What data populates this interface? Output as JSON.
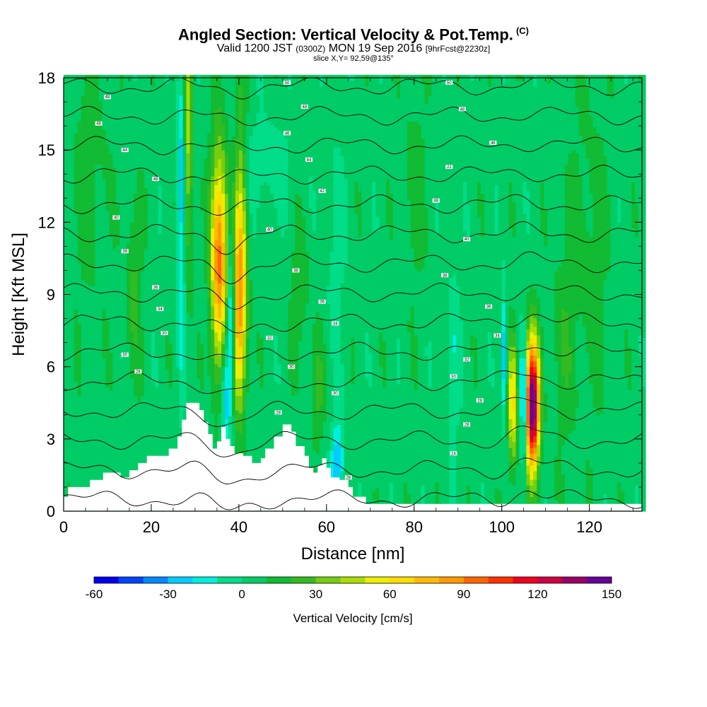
{
  "header": {
    "title_main": "Angled Section: Vertical Velocity & Pot.Temp.",
    "title_sup": "(C)",
    "subtitle_a": "Valid 1200 JST",
    "subtitle_b": "(0300Z)",
    "subtitle_c": "MON 19 Sep 2016",
    "subtitle_d": "[9hrFcst@2230z]",
    "slice": "slice X,Y= 92,59@135°"
  },
  "chart_data": {
    "type": "heatmap",
    "xlabel": "Distance [nm]",
    "ylabel": "Height [Kft MSL]",
    "xlim": [
      0,
      132
    ],
    "ylim": [
      0,
      18
    ],
    "x_ticks": [
      0,
      20,
      40,
      60,
      80,
      100,
      120
    ],
    "y_ticks": [
      0,
      3,
      6,
      9,
      12,
      15,
      18
    ],
    "x_tick_labels": [
      "0",
      "20",
      "40",
      "60",
      "80",
      "100",
      "120"
    ],
    "y_tick_labels": [
      "0",
      "3",
      "6",
      "9",
      "12",
      "15",
      "18"
    ],
    "background_w": 5,
    "terrain": [
      [
        0,
        0.6
      ],
      [
        1,
        1.0
      ],
      [
        6,
        1.3
      ],
      [
        9,
        1.6
      ],
      [
        13,
        1.4
      ],
      [
        15,
        1.7
      ],
      [
        17,
        2.0
      ],
      [
        19,
        2.3
      ],
      [
        24,
        2.6
      ],
      [
        26,
        3.1
      ],
      [
        27,
        3.8
      ],
      [
        28,
        4.5
      ],
      [
        31,
        4.2
      ],
      [
        32,
        3.7
      ],
      [
        33,
        3.2
      ],
      [
        34,
        2.6
      ],
      [
        35,
        2.9
      ],
      [
        36,
        3.5
      ],
      [
        37,
        3.0
      ],
      [
        38,
        2.7
      ],
      [
        39,
        2.4
      ],
      [
        41,
        2.3
      ],
      [
        43,
        2.0
      ],
      [
        45,
        2.2
      ],
      [
        46,
        2.6
      ],
      [
        48,
        3.1
      ],
      [
        50,
        3.6
      ],
      [
        52,
        3.3
      ],
      [
        53,
        2.7
      ],
      [
        55,
        2.3
      ],
      [
        56,
        1.8
      ],
      [
        57,
        1.6
      ],
      [
        58,
        1.9
      ],
      [
        59,
        2.2
      ],
      [
        60,
        1.8
      ],
      [
        61,
        1.4
      ],
      [
        63,
        1.3
      ],
      [
        65,
        1.0
      ],
      [
        66,
        0.6
      ],
      [
        69,
        0.3
      ],
      [
        71,
        0.3
      ],
      [
        132,
        0.3
      ]
    ],
    "updrafts": [
      {
        "x": 35.5,
        "y": 10.5,
        "sx": 1.3,
        "sy": 3.2,
        "w": 90
      },
      {
        "x": 40.0,
        "y": 8.3,
        "sx": 1.2,
        "sy": 2.8,
        "w": 75
      },
      {
        "x": 40.5,
        "y": 12.8,
        "sx": 0.9,
        "sy": 3.5,
        "w": 30
      },
      {
        "x": 28.5,
        "y": 16.0,
        "sx": 0.7,
        "sy": 4.0,
        "w": 40
      },
      {
        "x": 38.3,
        "y": 8.0,
        "sx": 0.6,
        "sy": 2.5,
        "w": -55
      },
      {
        "x": 37.0,
        "y": 5.0,
        "sx": 0.7,
        "sy": 2.0,
        "w": -35
      },
      {
        "x": 26.8,
        "y": 13.0,
        "sx": 0.6,
        "sy": 5.0,
        "w": -30
      },
      {
        "x": 107.0,
        "y": 4.4,
        "sx": 1.1,
        "sy": 1.9,
        "w": 150
      },
      {
        "x": 102.5,
        "y": 4.6,
        "sx": 0.7,
        "sy": 1.9,
        "w": 60
      },
      {
        "x": 105.0,
        "y": 4.5,
        "sx": 0.45,
        "sy": 1.9,
        "w": -60
      },
      {
        "x": 100.5,
        "y": 6.5,
        "sx": 0.5,
        "sy": 1.8,
        "w": -35
      },
      {
        "x": 16.0,
        "y": 9.5,
        "sx": 1.2,
        "sy": 2.5,
        "w": 18
      },
      {
        "x": 46.5,
        "y": 14.5,
        "sx": 4.0,
        "sy": 1.3,
        "w": -12
      },
      {
        "x": 62.5,
        "y": 2.0,
        "sx": 1.0,
        "sy": 1.2,
        "w": -35
      },
      {
        "x": 58.0,
        "y": 5.0,
        "sx": 1.0,
        "sy": 1.5,
        "w": 18
      },
      {
        "x": 120.0,
        "y": 11.0,
        "sx": 3.0,
        "sy": 5.0,
        "w": 10
      },
      {
        "x": 89.0,
        "y": 6.5,
        "sx": 1.0,
        "sy": 3.0,
        "w": -12
      },
      {
        "x": 80.0,
        "y": 13.5,
        "sx": 2.0,
        "sy": 3.0,
        "w": 10
      },
      {
        "x": 6.0,
        "y": 14.0,
        "sx": 3.0,
        "sy": 4.0,
        "w": 10
      },
      {
        "x": 114.0,
        "y": 7.0,
        "sx": 2.0,
        "sy": 3.0,
        "w": 12
      },
      {
        "x": 62.0,
        "y": 11.0,
        "sx": 1.5,
        "sy": 3.0,
        "w": -10
      },
      {
        "x": 54.0,
        "y": 9.0,
        "sx": 1.5,
        "sy": 2.0,
        "w": 12
      }
    ],
    "theta_levels": [
      22,
      24,
      26,
      28,
      30,
      32,
      34,
      36,
      38,
      40,
      42,
      44,
      46,
      48,
      50
    ],
    "isentrope_labels": [
      {
        "x": 10,
        "y": 17.2,
        "t": "48"
      },
      {
        "x": 8,
        "y": 16.1,
        "t": "48"
      },
      {
        "x": 14,
        "y": 15.0,
        "t": "44"
      },
      {
        "x": 21,
        "y": 13.8,
        "t": "48"
      },
      {
        "x": 12,
        "y": 12.2,
        "t": "40"
      },
      {
        "x": 14,
        "y": 10.8,
        "t": "38"
      },
      {
        "x": 21,
        "y": 9.3,
        "t": "36"
      },
      {
        "x": 22,
        "y": 8.4,
        "t": "34"
      },
      {
        "x": 23,
        "y": 7.4,
        "t": "30"
      },
      {
        "x": 14,
        "y": 6.5,
        "t": "30"
      },
      {
        "x": 17,
        "y": 5.8,
        "t": "28"
      },
      {
        "x": 51,
        "y": 17.8,
        "t": "50"
      },
      {
        "x": 55,
        "y": 16.8,
        "t": "48"
      },
      {
        "x": 51,
        "y": 15.7,
        "t": "46"
      },
      {
        "x": 56,
        "y": 14.6,
        "t": "44"
      },
      {
        "x": 59,
        "y": 13.3,
        "t": "42"
      },
      {
        "x": 47,
        "y": 11.7,
        "t": "40"
      },
      {
        "x": 53,
        "y": 10.0,
        "t": "38"
      },
      {
        "x": 59,
        "y": 8.7,
        "t": "36"
      },
      {
        "x": 62,
        "y": 7.8,
        "t": "34"
      },
      {
        "x": 47,
        "y": 7.2,
        "t": "32"
      },
      {
        "x": 52,
        "y": 6.0,
        "t": "30"
      },
      {
        "x": 62,
        "y": 4.9,
        "t": "30"
      },
      {
        "x": 49,
        "y": 4.1,
        "t": "28"
      },
      {
        "x": 65,
        "y": 1.4,
        "t": "28"
      },
      {
        "x": 88,
        "y": 17.8,
        "t": "50"
      },
      {
        "x": 91,
        "y": 16.7,
        "t": "48"
      },
      {
        "x": 98,
        "y": 15.3,
        "t": "46"
      },
      {
        "x": 88,
        "y": 14.3,
        "t": "22"
      },
      {
        "x": 85,
        "y": 12.9,
        "t": "48"
      },
      {
        "x": 92,
        "y": 11.3,
        "t": "40"
      },
      {
        "x": 87,
        "y": 9.8,
        "t": "38"
      },
      {
        "x": 97,
        "y": 8.5,
        "t": "36"
      },
      {
        "x": 99,
        "y": 7.3,
        "t": "34"
      },
      {
        "x": 92,
        "y": 6.3,
        "t": "32"
      },
      {
        "x": 89,
        "y": 5.6,
        "t": "30"
      },
      {
        "x": 95,
        "y": 4.6,
        "t": "28"
      },
      {
        "x": 92,
        "y": 3.6,
        "t": "28"
      },
      {
        "x": 89,
        "y": 2.4,
        "t": "24"
      }
    ],
    "colorbar": {
      "label": "Vertical Velocity [cm/s]",
      "min": -60,
      "max": 150,
      "step": 10,
      "tick_values": [
        -60,
        -30,
        0,
        30,
        60,
        90,
        120,
        150
      ],
      "tick_labels": [
        "-60",
        "-30",
        "0",
        "30",
        "60",
        "90",
        "120",
        "150"
      ],
      "colors": [
        "#0000ee",
        "#0044ff",
        "#0088ff",
        "#00ccff",
        "#00eedd",
        "#00dd88",
        "#00cc66",
        "#11bb33",
        "#33bb22",
        "#77cc11",
        "#aadd00",
        "#eeee00",
        "#ffdd00",
        "#ffbb00",
        "#ff9900",
        "#ff6600",
        "#ff3300",
        "#ee0022",
        "#cc0044",
        "#990066",
        "#660099"
      ]
    }
  }
}
